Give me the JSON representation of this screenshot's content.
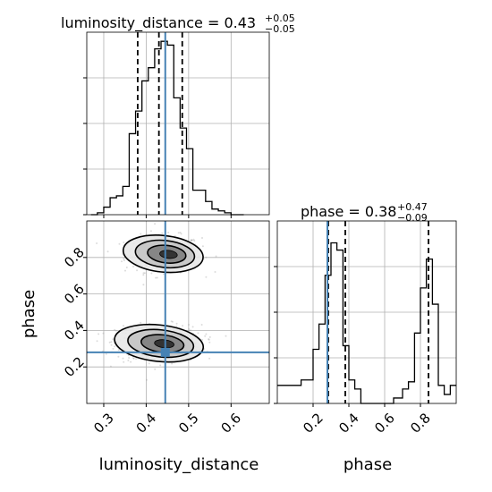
{
  "chart_data": {
    "type": "corner",
    "parameters": [
      "luminosity_distance",
      "phase"
    ],
    "truths": {
      "luminosity_distance": 0.445,
      "phase": 0.28
    },
    "colors": {
      "truth": "#4682b4",
      "hist": "#000000",
      "samples": "#9a9a9a",
      "grid": "#b0b0b0"
    },
    "panels": {
      "luminosity_distance_hist": {
        "title_main": "luminosity_distance = 0.43",
        "title_sup": "+0.05",
        "title_sub": "−0.05",
        "xlim": [
          0.26,
          0.69
        ],
        "quantiles": [
          0.38,
          0.43,
          0.485
        ],
        "bins_x": [
          0.27,
          0.285,
          0.3,
          0.315,
          0.33,
          0.345,
          0.36,
          0.375,
          0.39,
          0.405,
          0.42,
          0.435,
          0.45,
          0.465,
          0.48,
          0.495,
          0.51,
          0.525,
          0.54,
          0.555,
          0.57,
          0.585,
          0.6,
          0.615,
          0.63
        ],
        "bins_counts": [
          0.0,
          0.01,
          0.04,
          0.09,
          0.1,
          0.15,
          0.43,
          0.55,
          0.71,
          0.78,
          0.88,
          0.92,
          0.9,
          0.62,
          0.46,
          0.35,
          0.13,
          0.13,
          0.07,
          0.03,
          0.02,
          0.01,
          0.0,
          0.0
        ]
      },
      "phase_hist": {
        "title_main": "phase = 0.38",
        "title_sup": "+0.47",
        "title_sub": "−0.09",
        "xlim": [
          0.0,
          1.0
        ],
        "xticks": [
          "0.2",
          "0.4",
          "0.6",
          "0.8"
        ],
        "quantiles": [
          0.285,
          0.38,
          0.845
        ],
        "bins_x": [
          0.0,
          0.067,
          0.133,
          0.2,
          0.233,
          0.267,
          0.3,
          0.333,
          0.367,
          0.4,
          0.433,
          0.467,
          0.5,
          0.6,
          0.65,
          0.7,
          0.733,
          0.767,
          0.8,
          0.833,
          0.867,
          0.9,
          0.933,
          0.967,
          1.0
        ],
        "bins_counts": [
          0.1,
          0.1,
          0.13,
          0.3,
          0.44,
          0.71,
          0.89,
          0.85,
          0.32,
          0.13,
          0.08,
          0.0,
          0.0,
          0.0,
          0.03,
          0.08,
          0.12,
          0.39,
          0.64,
          0.8,
          0.55,
          0.1,
          0.05,
          0.1
        ]
      },
      "joint": {
        "xlim": [
          0.26,
          0.69
        ],
        "ylim": [
          0.0,
          1.0
        ],
        "xticks": [
          "0.3",
          "0.4",
          "0.5",
          "0.6"
        ],
        "yticks": [
          "0.2",
          "0.4",
          "0.6",
          "0.8"
        ],
        "modes": [
          {
            "x": 0.44,
            "y": 0.82,
            "sx": 0.045,
            "sy": 0.05,
            "weight": 0.45
          },
          {
            "x": 0.43,
            "y": 0.33,
            "sx": 0.05,
            "sy": 0.05,
            "weight": 0.55
          }
        ],
        "contour_levels": 4
      }
    },
    "axis_labels": {
      "x_left": "luminosity_distance",
      "x_right": "phase",
      "y": "phase"
    }
  }
}
